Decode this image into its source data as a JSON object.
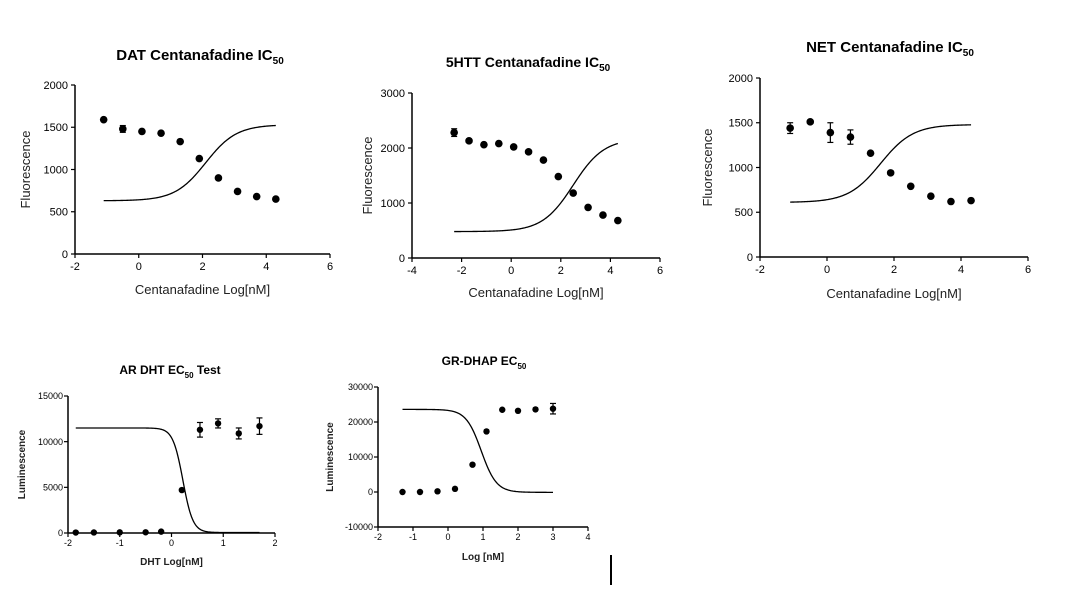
{
  "chart_data": [
    {
      "type": "scatter",
      "title": "DAT Centanafadine IC",
      "title_sub": "50",
      "xlabel": "Centanafadine Log[nM]",
      "ylabel": "Fluorescence",
      "xlim": [
        -2,
        6
      ],
      "ylim": [
        0,
        2000
      ],
      "xticks": [
        -2,
        0,
        2,
        4,
        6
      ],
      "yticks": [
        0,
        500,
        1000,
        1500,
        2000
      ],
      "points": [
        {
          "x": -1.1,
          "y": 1590
        },
        {
          "x": -0.5,
          "y": 1480,
          "err": 40
        },
        {
          "x": 0.1,
          "y": 1450
        },
        {
          "x": 0.7,
          "y": 1430
        },
        {
          "x": 1.3,
          "y": 1330
        },
        {
          "x": 1.9,
          "y": 1130
        },
        {
          "x": 2.5,
          "y": 900
        },
        {
          "x": 3.1,
          "y": 740
        },
        {
          "x": 3.7,
          "y": 680
        },
        {
          "x": 4.3,
          "y": 650
        }
      ],
      "fit": {
        "top": 1530,
        "bottom": 630,
        "logEC50": 2.1,
        "hill": -0.9,
        "from": -1.1,
        "to": 4.3
      }
    },
    {
      "type": "scatter",
      "title": "5HTT Centanafadine IC",
      "title_sub": "50",
      "xlabel": "Centanafadine Log[nM]",
      "ylabel": "Fluorescence",
      "xlim": [
        -4,
        6
      ],
      "ylim": [
        0,
        3000
      ],
      "xticks": [
        -4,
        -2,
        0,
        2,
        4,
        6
      ],
      "yticks": [
        0,
        1000,
        2000,
        3000
      ],
      "points": [
        {
          "x": -2.3,
          "y": 2280,
          "err": 70
        },
        {
          "x": -1.7,
          "y": 2130
        },
        {
          "x": -1.1,
          "y": 2060
        },
        {
          "x": -0.5,
          "y": 2080
        },
        {
          "x": 0.1,
          "y": 2020
        },
        {
          "x": 0.7,
          "y": 1930
        },
        {
          "x": 1.3,
          "y": 1780
        },
        {
          "x": 1.9,
          "y": 1480
        },
        {
          "x": 2.5,
          "y": 1180
        },
        {
          "x": 3.1,
          "y": 920
        },
        {
          "x": 3.7,
          "y": 780
        },
        {
          "x": 4.3,
          "y": 680
        }
      ],
      "fit": {
        "top": 2170,
        "bottom": 480,
        "logEC50": 2.5,
        "hill": -0.7,
        "from": -2.3,
        "to": 4.3
      }
    },
    {
      "type": "scatter",
      "title": "NET Centanafadine IC",
      "title_sub": "50",
      "xlabel": "Centanafadine Log[nM]",
      "ylabel": "Fluorescence",
      "xlim": [
        -2,
        6
      ],
      "ylim": [
        0,
        2000
      ],
      "xticks": [
        -2,
        0,
        2,
        4,
        6
      ],
      "yticks": [
        0,
        500,
        1000,
        1500,
        2000
      ],
      "points": [
        {
          "x": -1.1,
          "y": 1440,
          "err": 60
        },
        {
          "x": -0.5,
          "y": 1510
        },
        {
          "x": 0.1,
          "y": 1390,
          "err": 110
        },
        {
          "x": 0.7,
          "y": 1340,
          "err": 80
        },
        {
          "x": 1.3,
          "y": 1160
        },
        {
          "x": 1.9,
          "y": 940
        },
        {
          "x": 2.5,
          "y": 790
        },
        {
          "x": 3.1,
          "y": 680
        },
        {
          "x": 3.7,
          "y": 620
        },
        {
          "x": 4.3,
          "y": 630
        }
      ],
      "fit": {
        "top": 1480,
        "bottom": 610,
        "logEC50": 1.6,
        "hill": -0.9,
        "from": -1.1,
        "to": 4.3
      }
    },
    {
      "type": "scatter",
      "title": "AR DHT EC",
      "title_sub": "50",
      "title_tail": " Test",
      "xlabel": "DHT Log[nM]",
      "ylabel": "Luminescence",
      "xlim": [
        -2,
        2
      ],
      "ylim": [
        0,
        15000
      ],
      "xticks": [
        -2,
        -1,
        0,
        1,
        2
      ],
      "yticks": [
        0,
        5000,
        10000,
        15000
      ],
      "points": [
        {
          "x": -1.85,
          "y": 50
        },
        {
          "x": -1.5,
          "y": 60
        },
        {
          "x": -1.0,
          "y": 70
        },
        {
          "x": -0.5,
          "y": 80
        },
        {
          "x": -0.2,
          "y": 150
        },
        {
          "x": 0.2,
          "y": 4700
        },
        {
          "x": 0.55,
          "y": 11300,
          "err": 800
        },
        {
          "x": 0.9,
          "y": 12000,
          "err": 500
        },
        {
          "x": 1.3,
          "y": 10900,
          "err": 600
        },
        {
          "x": 1.7,
          "y": 11700,
          "err": 900
        }
      ],
      "fit": {
        "top": 11500,
        "bottom": 50,
        "logEC50": 0.22,
        "hill": 4.5,
        "from": -1.85,
        "to": 1.7
      }
    },
    {
      "type": "scatter",
      "title": "GR-DHAP EC",
      "title_sub": "50",
      "xlabel": "Log [nM]",
      "ylabel": "Luminescence",
      "xlim": [
        -2,
        4
      ],
      "ylim": [
        -10000,
        30000
      ],
      "xticks": [
        -2,
        -1,
        0,
        1,
        2,
        3,
        4
      ],
      "yticks": [
        -10000,
        0,
        10000,
        20000,
        30000
      ],
      "points": [
        {
          "x": -1.3,
          "y": 0
        },
        {
          "x": -0.8,
          "y": 0
        },
        {
          "x": -0.3,
          "y": 200
        },
        {
          "x": 0.2,
          "y": 900
        },
        {
          "x": 0.7,
          "y": 7800
        },
        {
          "x": 1.1,
          "y": 17300
        },
        {
          "x": 1.55,
          "y": 23500
        },
        {
          "x": 2.0,
          "y": 23200
        },
        {
          "x": 2.5,
          "y": 23600
        },
        {
          "x": 3.0,
          "y": 23800,
          "err": 1500
        }
      ],
      "fit": {
        "top": 23600,
        "bottom": -100,
        "logEC50": 0.95,
        "hill": 2.0,
        "from": -1.3,
        "to": 3.0
      }
    }
  ]
}
